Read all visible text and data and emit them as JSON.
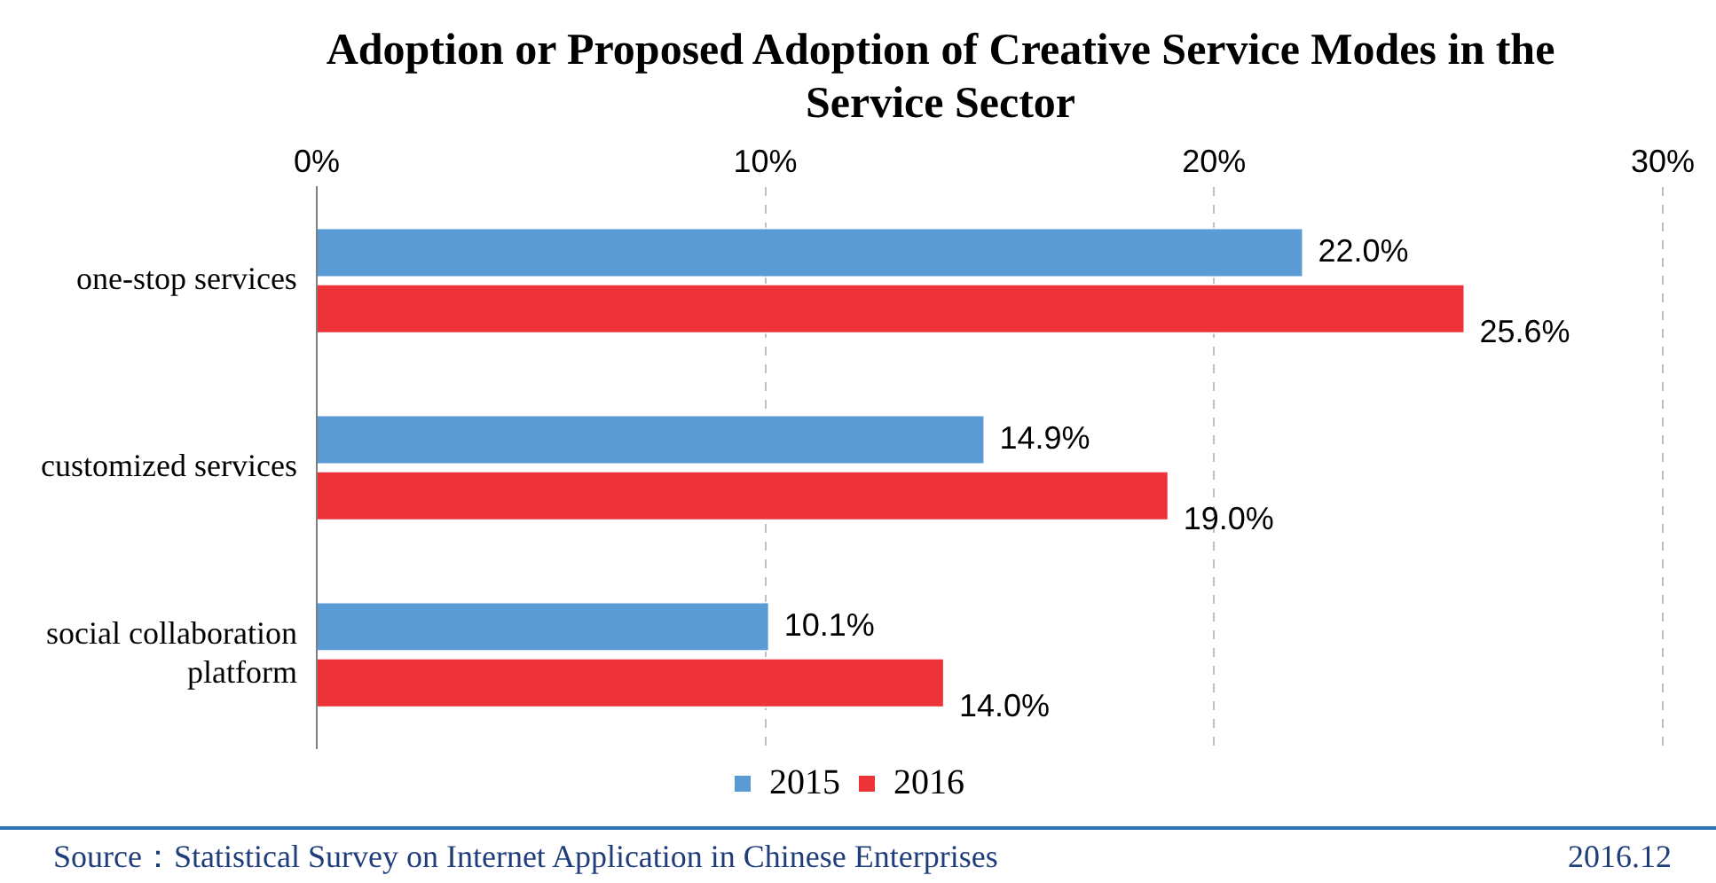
{
  "chart_data": {
    "type": "bar",
    "orientation": "horizontal",
    "title": "Adoption or Proposed Adoption of Creative Service Modes in the Service Sector",
    "categories": [
      "one-stop services",
      "customized services",
      "social collaboration platform"
    ],
    "series": [
      {
        "name": "2015",
        "color": "#5b9bd5",
        "values": [
          22.0,
          14.9,
          10.1
        ],
        "value_labels": [
          "22.0%",
          "14.9%",
          "10.1%"
        ]
      },
      {
        "name": "2016",
        "color": "#ee3338",
        "values": [
          25.6,
          19.0,
          14.0
        ],
        "value_labels": [
          "25.6%",
          "19.0%",
          "14.0%"
        ]
      }
    ],
    "xlim": [
      0,
      30
    ],
    "xticks": [
      {
        "value": 0,
        "label": "0%"
      },
      {
        "value": 10,
        "label": "10%"
      },
      {
        "value": 20,
        "label": "20%"
      },
      {
        "value": 30,
        "label": "30%"
      }
    ],
    "grid": "x",
    "legend": "bottom",
    "annotations": [
      "Source：Statistical Survey on Internet Application in Chinese Enterprises",
      "2016.12"
    ]
  }
}
